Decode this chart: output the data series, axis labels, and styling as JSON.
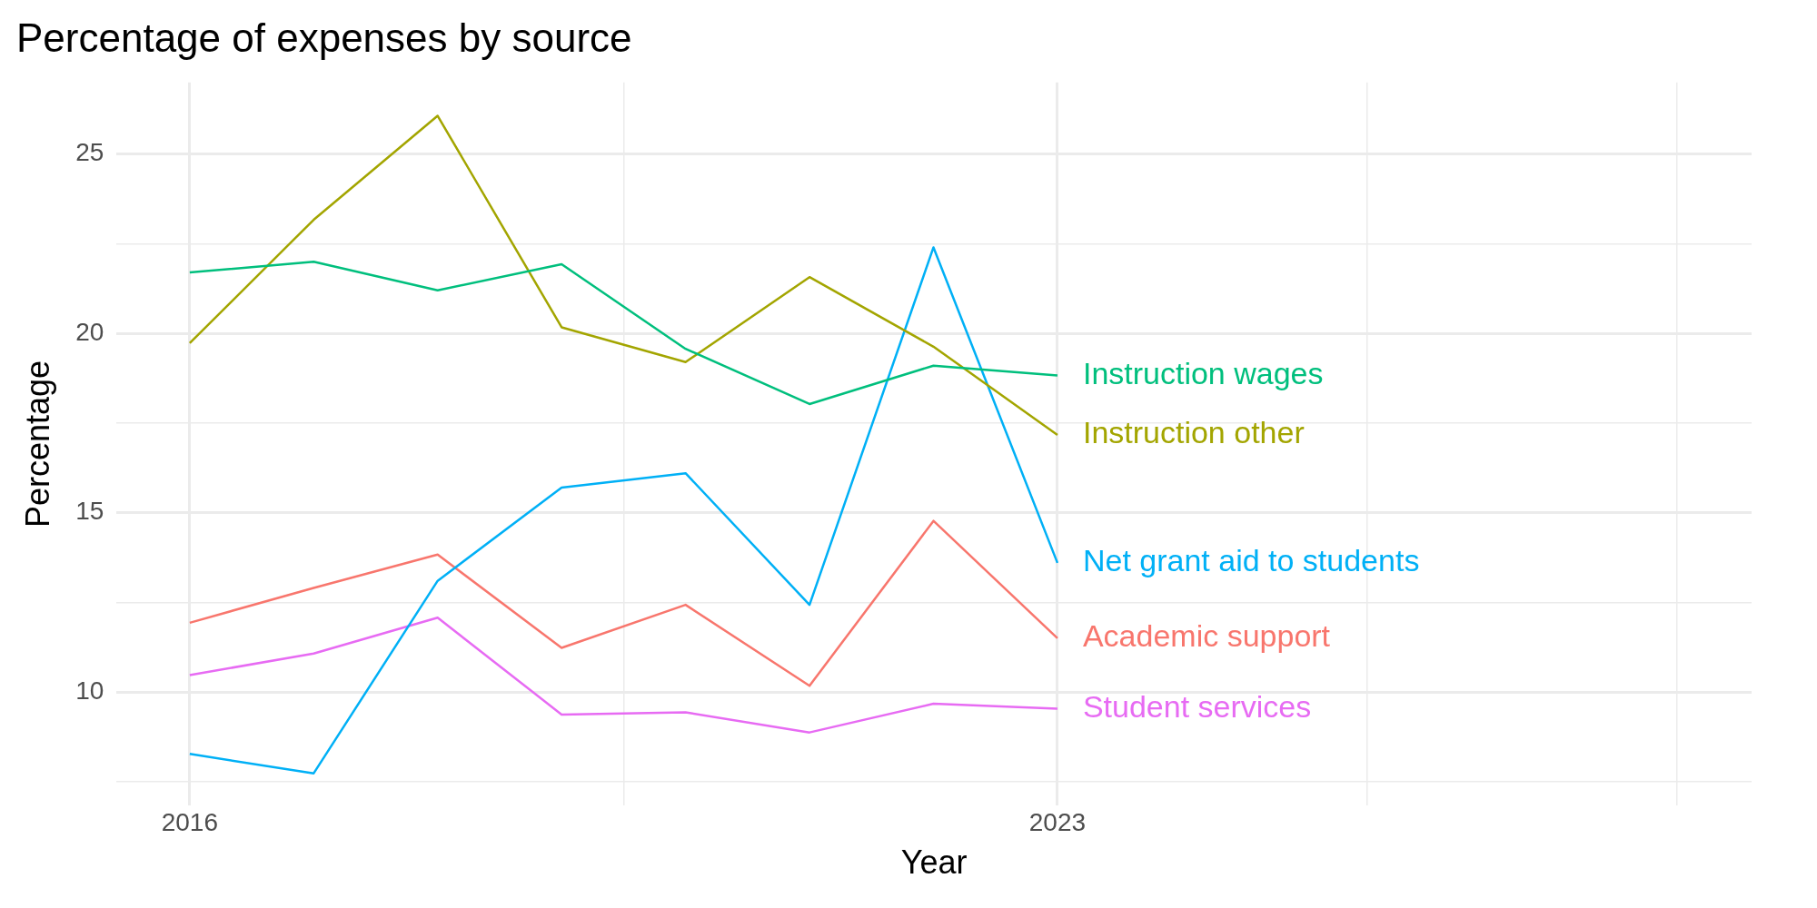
{
  "chart_data": {
    "type": "line",
    "title": "Percentage of expenses by source",
    "xlabel": "Year",
    "ylabel": "Percentage",
    "x": [
      2016,
      2017,
      2018,
      2019,
      2020,
      2021,
      2022,
      2023
    ],
    "xlim": [
      2015.41,
      2028.6
    ],
    "xticks": [
      2016,
      {
        "value": 2019.5,
        "label": null
      },
      2023,
      {
        "value": 2025.5,
        "label": null
      },
      {
        "value": 2028,
        "label": null
      }
    ],
    "ylim": [
      6.83,
      27
    ],
    "yticks": [
      {
        "value": 7.5,
        "label": null
      },
      10,
      {
        "value": 12.5,
        "label": null
      },
      15,
      {
        "value": 17.5,
        "label": null
      },
      20,
      {
        "value": 22.5,
        "label": null
      },
      25
    ],
    "grid": true,
    "legend": false,
    "line_style": "solid",
    "marker": "none",
    "series": [
      {
        "name": "Instruction wages",
        "color": "#00bf7d",
        "values": [
          21.7,
          22.0,
          21.2,
          21.93,
          19.57,
          18.03,
          19.1,
          18.83
        ]
      },
      {
        "name": "Instruction other",
        "color": "#a3a500",
        "values": [
          19.73,
          23.17,
          26.07,
          20.17,
          19.2,
          21.57,
          19.63,
          17.17
        ]
      },
      {
        "name": "Net grant aid to students",
        "color": "#00b0f6",
        "values": [
          8.27,
          7.73,
          13.1,
          15.7,
          16.1,
          12.43,
          22.4,
          13.6
        ]
      },
      {
        "name": "Academic support",
        "color": "#f8766d",
        "values": [
          11.93,
          12.9,
          13.83,
          11.23,
          12.43,
          10.17,
          14.77,
          11.5
        ]
      },
      {
        "name": "Student services",
        "color": "#e76bf3",
        "values": [
          10.47,
          11.07,
          12.07,
          9.37,
          9.43,
          8.87,
          9.67,
          9.53
        ]
      }
    ]
  }
}
